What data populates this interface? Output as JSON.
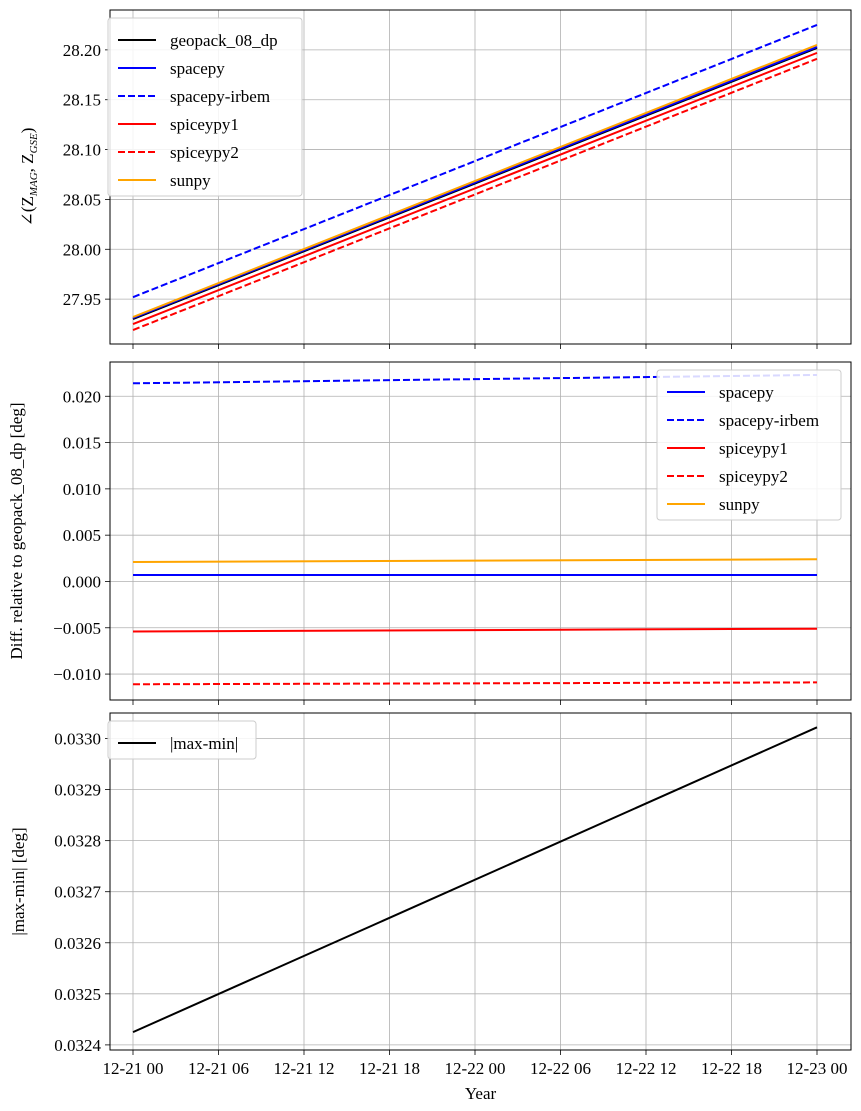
{
  "chart_data": [
    {
      "type": "line",
      "title": "",
      "xlabel": "",
      "ylabel": "∠(Z_MAG, Z_GSE)",
      "ylabel_main": "∠(Z",
      "ylabel_sub1": "MAG",
      "ylabel_sep": ", Z",
      "ylabel_sub2": "GSE",
      "ylabel_end": ")",
      "x": [
        "12-21 00",
        "12-23 00"
      ],
      "ylim": [
        27.905,
        28.24
      ],
      "yticks": [
        27.95,
        28.0,
        28.05,
        28.1,
        28.15,
        28.2
      ],
      "ytick_labels": [
        "27.95",
        "28.00",
        "28.05",
        "28.10",
        "28.15",
        "28.20"
      ],
      "grid": true,
      "legend_position": "top-left",
      "series": [
        {
          "name": "geopack_08_dp",
          "color": "#000000",
          "dash": "solid",
          "values": [
            27.93,
            28.202
          ]
        },
        {
          "name": "spacepy",
          "color": "#0000ff",
          "dash": "solid",
          "values": [
            27.931,
            28.203
          ]
        },
        {
          "name": "spacepy-irbem",
          "color": "#0000ff",
          "dash": "dashed",
          "values": [
            27.952,
            28.225
          ]
        },
        {
          "name": "spiceypy1",
          "color": "#ff0000",
          "dash": "solid",
          "values": [
            27.925,
            28.197
          ]
        },
        {
          "name": "spiceypy2",
          "color": "#ff0000",
          "dash": "dashed",
          "values": [
            27.919,
            28.191
          ]
        },
        {
          "name": "sunpy",
          "color": "#ffa500",
          "dash": "solid",
          "values": [
            27.932,
            28.205
          ]
        }
      ]
    },
    {
      "type": "line",
      "title": "",
      "xlabel": "",
      "ylabel": "Diff. relative to geopack_08_dp [deg]",
      "x": [
        "12-21 00",
        "12-23 00"
      ],
      "ylim": [
        -0.0128,
        0.0237
      ],
      "yticks": [
        -0.01,
        -0.005,
        0.0,
        0.005,
        0.01,
        0.015,
        0.02
      ],
      "ytick_labels": [
        "−0.010",
        "−0.005",
        "0.000",
        "0.005",
        "0.010",
        "0.015",
        "0.020"
      ],
      "grid": true,
      "legend_position": "top-right",
      "series": [
        {
          "name": "spacepy",
          "color": "#0000ff",
          "dash": "solid",
          "values": [
            0.0007,
            0.0007
          ]
        },
        {
          "name": "spacepy-irbem",
          "color": "#0000ff",
          "dash": "dashed",
          "values": [
            0.0214,
            0.0223
          ]
        },
        {
          "name": "spiceypy1",
          "color": "#ff0000",
          "dash": "solid",
          "values": [
            -0.0054,
            -0.0051
          ]
        },
        {
          "name": "spiceypy2",
          "color": "#ff0000",
          "dash": "dashed",
          "values": [
            -0.0111,
            -0.0109
          ]
        },
        {
          "name": "sunpy",
          "color": "#ffa500",
          "dash": "solid",
          "values": [
            0.0021,
            0.0024
          ]
        }
      ]
    },
    {
      "type": "line",
      "title": "",
      "xlabel": "Year",
      "ylabel": "|max-min| [deg]",
      "x": [
        "12-21 00",
        "12-23 00"
      ],
      "ylim": [
        0.03239,
        0.03305
      ],
      "yticks": [
        0.0324,
        0.0325,
        0.0326,
        0.0327,
        0.0328,
        0.0329,
        0.033
      ],
      "ytick_labels": [
        "0.0324",
        "0.0325",
        "0.0326",
        "0.0327",
        "0.0328",
        "0.0329",
        "0.0330"
      ],
      "grid": true,
      "legend_position": "top-left",
      "series": [
        {
          "name": "|max-min|",
          "color": "#000000",
          "dash": "solid",
          "values": [
            0.032425,
            0.033022
          ]
        }
      ]
    }
  ],
  "x_axis": {
    "tick_labels": [
      "12-21 00",
      "12-21 06",
      "12-21 12",
      "12-21 18",
      "12-22 00",
      "12-22 06",
      "12-22 12",
      "12-22 18",
      "12-23 00"
    ],
    "label": "Year"
  }
}
